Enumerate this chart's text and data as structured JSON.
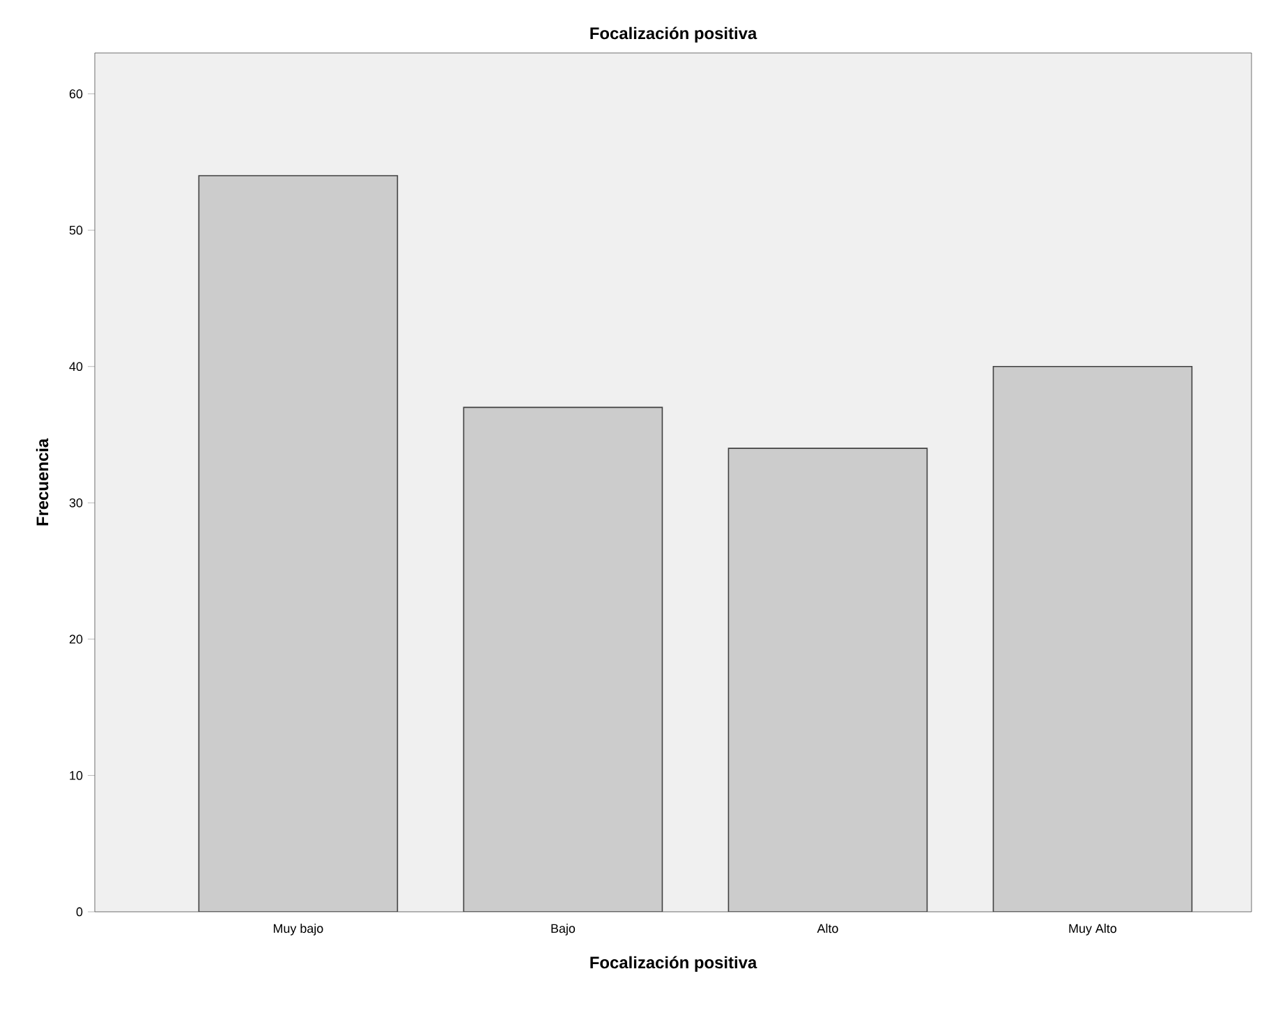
{
  "chart_data": {
    "type": "bar",
    "title": "Focalización positiva",
    "xlabel": "Focalización positiva",
    "ylabel": "Frecuencia",
    "categories": [
      "Muy bajo",
      "Bajo",
      "Alto",
      "Muy Alto"
    ],
    "values": [
      54,
      37,
      34,
      40
    ],
    "color": "#cccccc",
    "ylim": [
      0,
      63
    ],
    "yticks": [
      0,
      10,
      20,
      30,
      40,
      50,
      60
    ],
    "grid": false
  }
}
